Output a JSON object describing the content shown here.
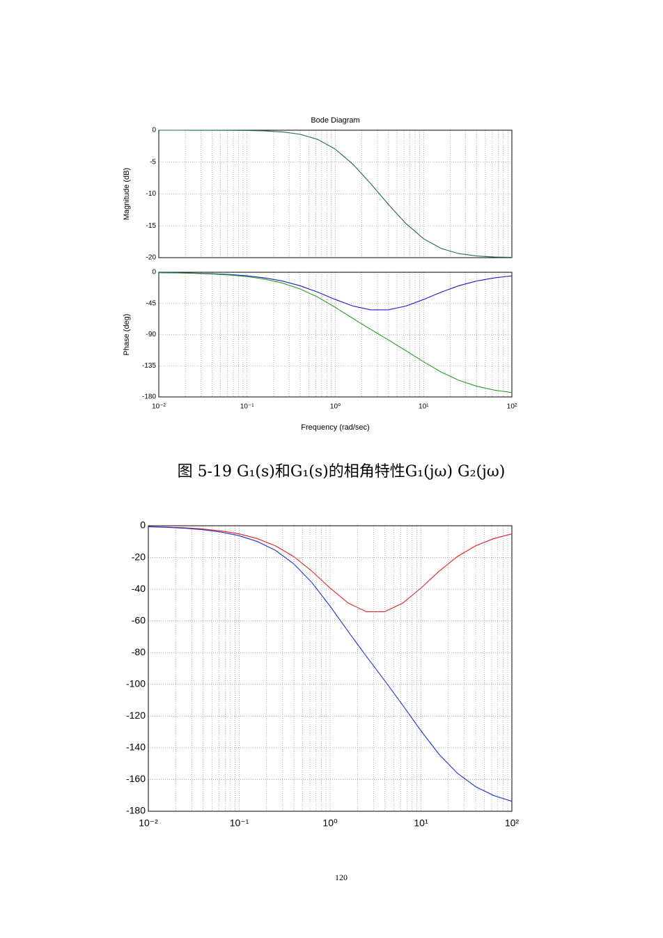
{
  "chart_data": [
    {
      "type": "line",
      "title": "Bode Diagram",
      "ylabel": "Magnitude (dB)",
      "xscale": "log",
      "grid": true,
      "xlim": [
        0.01,
        100
      ],
      "xticks": [
        0.01,
        0.1,
        1,
        10,
        100
      ],
      "minor_xticks": [
        0.02,
        0.03,
        0.04,
        0.05,
        0.06,
        0.07,
        0.08,
        0.09,
        0.2,
        0.3,
        0.4,
        0.5,
        0.6,
        0.7,
        0.8,
        0.9,
        2,
        3,
        4,
        5,
        6,
        7,
        8,
        9,
        20,
        30,
        40,
        50,
        60,
        70,
        80,
        90
      ],
      "ylim": [
        -20,
        0
      ],
      "yticks": [
        0,
        -5,
        -10,
        -15,
        -20
      ],
      "x": [
        0.01,
        0.0158,
        0.0251,
        0.0398,
        0.0631,
        0.1,
        0.158,
        0.251,
        0.398,
        0.631,
        1,
        1.585,
        2.512,
        3.981,
        6.31,
        10,
        15.85,
        25.12,
        39.81,
        63.1,
        100
      ],
      "series": [
        {
          "color": "#1f6e45",
          "values": [
            0,
            -0.001,
            -0.003,
            -0.007,
            -0.017,
            -0.043,
            -0.107,
            -0.263,
            -0.63,
            -1.438,
            -2.967,
            -5.348,
            -8.373,
            -11.627,
            -14.653,
            -17.033,
            -18.561,
            -19.368,
            -19.737,
            -19.893,
            -19.957
          ]
        }
      ]
    },
    {
      "type": "line",
      "ylabel": "Phase (deg)",
      "xlabel": "Frequency (rad/sec)",
      "xscale": "log",
      "grid": true,
      "xlim": [
        0.01,
        100
      ],
      "xticks": [
        {
          "value": 0.01,
          "label": "10⁻²"
        },
        {
          "value": 0.1,
          "label": "10⁻¹"
        },
        {
          "value": 1,
          "label": "10⁰"
        },
        {
          "value": 10,
          "label": "10¹"
        },
        {
          "value": 100,
          "label": "10²"
        }
      ],
      "minor_xticks": [
        0.02,
        0.03,
        0.04,
        0.05,
        0.06,
        0.07,
        0.08,
        0.09,
        0.2,
        0.3,
        0.4,
        0.5,
        0.6,
        0.7,
        0.8,
        0.9,
        2,
        3,
        4,
        5,
        6,
        7,
        8,
        9,
        20,
        30,
        40,
        50,
        60,
        70,
        80,
        90
      ],
      "ylim": [
        -180,
        0
      ],
      "yticks": [
        0,
        -45,
        -90,
        -135,
        -180
      ],
      "x": [
        0.01,
        0.0158,
        0.0251,
        0.0398,
        0.0631,
        0.1,
        0.158,
        0.251,
        0.398,
        0.631,
        1,
        1.585,
        2.512,
        3.981,
        6.31,
        10,
        15.85,
        25.12,
        39.81,
        63.1,
        100
      ],
      "series": [
        {
          "color": "#1a1ad0",
          "values": [
            -0.52,
            -0.82,
            -1.29,
            -2.05,
            -3.25,
            -5.14,
            -8.1,
            -12.66,
            -19.42,
            -28.64,
            -39.29,
            -48.75,
            -54.2,
            -54.2,
            -48.75,
            -39.29,
            -28.63,
            -19.42,
            -12.66,
            -8.09,
            -5.14
          ]
        },
        {
          "color": "#22a022",
          "values": [
            -0.63,
            -1,
            -1.58,
            -2.51,
            -3.97,
            -6.28,
            -9.91,
            -15.54,
            -23.98,
            -35.86,
            -50.71,
            -66.77,
            -82.4,
            -97.6,
            -113.25,
            -129.29,
            -144.15,
            -156.02,
            -164.46,
            -170.09,
            -173.72
          ]
        }
      ]
    },
    {
      "type": "line",
      "xscale": "log",
      "grid": true,
      "xlim": [
        0.01,
        100
      ],
      "xticks": [
        {
          "value": 0.01,
          "label": "10⁻²"
        },
        {
          "value": 0.1,
          "label": "10⁻¹"
        },
        {
          "value": 1,
          "label": "10⁰"
        },
        {
          "value": 10,
          "label": "10¹"
        },
        {
          "value": 100,
          "label": "10²"
        }
      ],
      "minor_xticks": [
        0.02,
        0.03,
        0.04,
        0.05,
        0.06,
        0.07,
        0.08,
        0.09,
        0.2,
        0.3,
        0.4,
        0.5,
        0.6,
        0.7,
        0.8,
        0.9,
        2,
        3,
        4,
        5,
        6,
        7,
        8,
        9,
        20,
        30,
        40,
        50,
        60,
        70,
        80,
        90
      ],
      "ylim": [
        -180,
        0
      ],
      "yticks": [
        0,
        -20,
        -40,
        -60,
        -80,
        -100,
        -120,
        -140,
        -160,
        -180
      ],
      "x": [
        0.01,
        0.0158,
        0.0251,
        0.0398,
        0.0631,
        0.1,
        0.158,
        0.251,
        0.398,
        0.631,
        1,
        1.585,
        2.512,
        3.981,
        6.31,
        10,
        15.85,
        25.12,
        39.81,
        63.1,
        100
      ],
      "series": [
        {
          "color": "#e02020",
          "values": [
            -0.52,
            -0.82,
            -1.29,
            -2.05,
            -3.25,
            -5.14,
            -8.1,
            -12.66,
            -19.42,
            -28.64,
            -39.29,
            -48.75,
            -54.2,
            -54.2,
            -48.75,
            -39.29,
            -28.63,
            -19.42,
            -12.66,
            -8.09,
            -5.14
          ]
        },
        {
          "color": "#2030d8",
          "values": [
            -0.63,
            -1,
            -1.58,
            -2.51,
            -3.97,
            -6.28,
            -9.91,
            -15.54,
            -23.98,
            -35.86,
            -50.71,
            -66.77,
            -82.4,
            -97.6,
            -113.25,
            -129.29,
            -144.15,
            -156.02,
            -164.46,
            -170.09,
            -173.72
          ]
        }
      ]
    }
  ],
  "caption": "图 5-19 G₁(s)和G₁(s)的相角特性G₁(jω) G₂(jω)",
  "page_number": "120"
}
